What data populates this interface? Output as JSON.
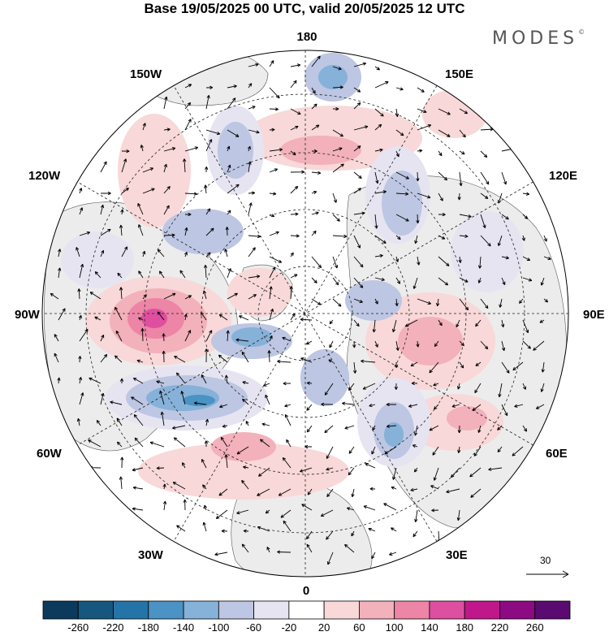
{
  "title": "Base 19/05/2025 00 UTC, valid 20/05/2025 12 UTC",
  "brand": "MODES",
  "brand_mark": "©",
  "longitude_labels": {
    "top": "180",
    "bottom": "0",
    "left": "90W",
    "right": "90E",
    "upper_left": "150W",
    "upper_right": "150E",
    "mid_left_upper": "120W",
    "mid_right_upper": "120E",
    "mid_left_lower": "60W",
    "mid_right_lower": "60E",
    "lower_left": "30W",
    "lower_right": "30E"
  },
  "reference_vector": "30",
  "colorbar": {
    "ticks": [
      "-260",
      "-220",
      "-180",
      "-140",
      "-100",
      "-60",
      "-20",
      "20",
      "60",
      "100",
      "140",
      "180",
      "220",
      "260"
    ],
    "colors": [
      "#0b3a5c",
      "#16577f",
      "#2574a8",
      "#4a93c4",
      "#86b1d8",
      "#bdc6e2",
      "#e6e4f1",
      "#ffffff",
      "#f8d8d8",
      "#f2b1bb",
      "#ec85a6",
      "#df4fa0",
      "#c0188a",
      "#8c0a82",
      "#5a0a70"
    ]
  },
  "map_colors": {
    "land": "#ececec",
    "ocean": "#ffffff",
    "positive_light": "#f8d8d8",
    "positive_mid": "#f2b1bb",
    "positive_strong": "#ec85a6",
    "positive_max": "#df4fa0",
    "negative_light": "#e6e4f1",
    "negative_mid": "#bdc6e2",
    "negative_strong": "#86b1d8",
    "negative_max": "#4a93c4"
  }
}
